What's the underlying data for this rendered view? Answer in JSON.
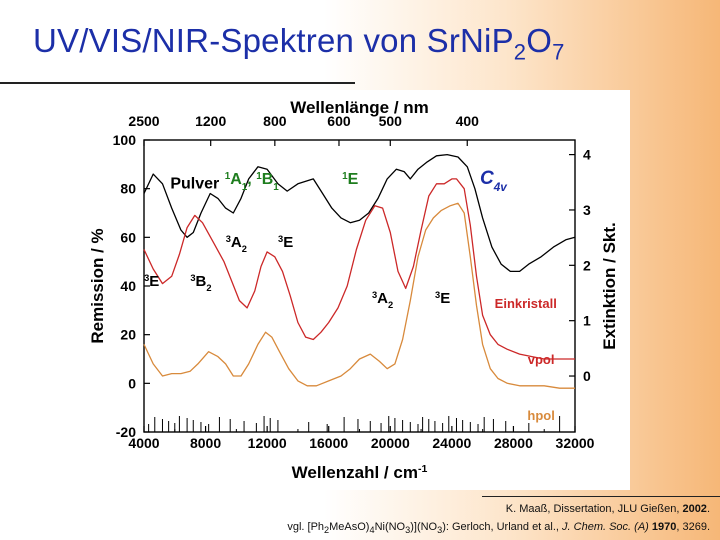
{
  "slide": {
    "title_main": "UV/VIS/NIR-Spektren von SrNiP",
    "title_sub1": "2",
    "title_o": "O",
    "title_sub2": "7"
  },
  "references": {
    "line1_text": "K. Maaß, Dissertation, JLU Gießen, ",
    "line1_year": "2002",
    "line1_end": ".",
    "line2_a": "vgl. [Ph",
    "line2_b": "MeAsO)",
    "line2_c": "Ni(NO",
    "line2_d": ")](NO",
    "line2_e": "): Gerloch, Urland et al., ",
    "line2_journal": "J. Chem. Soc. (A)",
    "line2_year": " 1970",
    "line2_pages": ", 3269.",
    "sub2": "2",
    "sub4": "4",
    "sub3": "3",
    "lbracket": "["
  },
  "chart_data": {
    "type": "line",
    "xlabel": "Wellenzahl / cm",
    "xlabel_sup": "-1",
    "top_xlabel": "Wellenlänge / nm",
    "ylabel_left": "Remission / %",
    "ylabel_right": "Extinktion / Skt.",
    "xlim": [
      4000,
      32000
    ],
    "ylim_left": [
      -20,
      100
    ],
    "xticks": [
      "4000",
      "8000",
      "12000",
      "16000",
      "20000",
      "24000",
      "28000",
      "32000"
    ],
    "xtick_values": [
      4000,
      8000,
      12000,
      16000,
      20000,
      24000,
      28000,
      32000
    ],
    "yticks_left": [
      "-20",
      "0",
      "20",
      "40",
      "60",
      "80",
      "100"
    ],
    "ytick_left_values": [
      -20,
      0,
      20,
      40,
      60,
      80,
      100
    ],
    "yticks_right": [
      "0",
      "1",
      "2",
      "3",
      "4"
    ],
    "ytick_right_values": [
      0,
      1,
      2,
      3,
      4
    ],
    "right_axis_map": {
      "0": 3,
      "4": 94
    },
    "top_ticks": [
      {
        "label": "2500",
        "wavenumber": 4000
      },
      {
        "label": "1200",
        "wavenumber": 8333
      },
      {
        "label": "800",
        "wavenumber": 12500
      },
      {
        "label": "600",
        "wavenumber": 16667
      },
      {
        "label": "500",
        "wavenumber": 20000
      },
      {
        "label": "400",
        "wavenumber": 25000
      }
    ],
    "series": [
      {
        "name": "Pulver",
        "color": "#000000",
        "axis": "left",
        "points": [
          [
            4000,
            78
          ],
          [
            4600,
            86
          ],
          [
            5200,
            82
          ],
          [
            5800,
            72
          ],
          [
            6400,
            63
          ],
          [
            6800,
            60
          ],
          [
            7200,
            62
          ],
          [
            7700,
            70
          ],
          [
            8300,
            78
          ],
          [
            8800,
            76
          ],
          [
            9300,
            72
          ],
          [
            9800,
            70
          ],
          [
            10300,
            76
          ],
          [
            10800,
            84
          ],
          [
            11400,
            89
          ],
          [
            12000,
            88
          ],
          [
            12700,
            82
          ],
          [
            13300,
            79
          ],
          [
            14000,
            82
          ],
          [
            15000,
            84
          ],
          [
            15600,
            78
          ],
          [
            16200,
            72
          ],
          [
            16800,
            68
          ],
          [
            17400,
            66
          ],
          [
            18000,
            67
          ],
          [
            18600,
            70
          ],
          [
            19200,
            76
          ],
          [
            19800,
            84
          ],
          [
            20400,
            88
          ],
          [
            20900,
            87
          ],
          [
            21300,
            84
          ],
          [
            21800,
            88
          ],
          [
            22400,
            91
          ],
          [
            23000,
            93.5
          ],
          [
            23700,
            94
          ],
          [
            24400,
            93
          ],
          [
            25000,
            89
          ],
          [
            25500,
            80
          ],
          [
            26000,
            68
          ],
          [
            26600,
            56
          ],
          [
            27200,
            49
          ],
          [
            27800,
            46
          ],
          [
            28400,
            46
          ],
          [
            29000,
            49
          ],
          [
            29800,
            52
          ],
          [
            30600,
            56
          ],
          [
            31400,
            59
          ],
          [
            32000,
            60
          ]
        ]
      },
      {
        "name": "vpol",
        "color": "#cc2828",
        "axis": "left",
        "points": [
          [
            4000,
            55
          ],
          [
            4600,
            47
          ],
          [
            5200,
            41
          ],
          [
            5800,
            44
          ],
          [
            6300,
            53
          ],
          [
            6800,
            64
          ],
          [
            7300,
            69
          ],
          [
            7800,
            66
          ],
          [
            8500,
            58
          ],
          [
            9200,
            50
          ],
          [
            9700,
            42
          ],
          [
            10200,
            34
          ],
          [
            10700,
            31
          ],
          [
            11200,
            38
          ],
          [
            11600,
            48
          ],
          [
            12000,
            54
          ],
          [
            12500,
            52
          ],
          [
            13000,
            46
          ],
          [
            13500,
            36
          ],
          [
            14000,
            25
          ],
          [
            14500,
            19
          ],
          [
            15000,
            18
          ],
          [
            15500,
            21
          ],
          [
            16000,
            25
          ],
          [
            16600,
            31
          ],
          [
            17200,
            40
          ],
          [
            17800,
            55
          ],
          [
            18400,
            67
          ],
          [
            19000,
            73
          ],
          [
            19500,
            72
          ],
          [
            20000,
            62
          ],
          [
            20500,
            46
          ],
          [
            21000,
            39
          ],
          [
            21500,
            48
          ],
          [
            22000,
            63
          ],
          [
            22500,
            77
          ],
          [
            23000,
            82
          ],
          [
            23500,
            82
          ],
          [
            24000,
            84
          ],
          [
            24300,
            84
          ],
          [
            24800,
            80
          ],
          [
            25200,
            65
          ],
          [
            25600,
            44
          ],
          [
            26000,
            28
          ],
          [
            26500,
            20
          ],
          [
            27000,
            16
          ],
          [
            27600,
            14
          ],
          [
            28400,
            12
          ],
          [
            29200,
            11
          ],
          [
            30000,
            10
          ],
          [
            31000,
            10
          ],
          [
            32000,
            10
          ]
        ]
      },
      {
        "name": "hpol",
        "color": "#d88a3c",
        "axis": "left",
        "points": [
          [
            4000,
            16
          ],
          [
            4600,
            8
          ],
          [
            5200,
            3
          ],
          [
            5800,
            4
          ],
          [
            6400,
            4
          ],
          [
            7000,
            5
          ],
          [
            7500,
            8
          ],
          [
            8200,
            13
          ],
          [
            8800,
            11
          ],
          [
            9300,
            8
          ],
          [
            9800,
            3
          ],
          [
            10300,
            3
          ],
          [
            10800,
            8
          ],
          [
            11400,
            16
          ],
          [
            11900,
            21
          ],
          [
            12300,
            19
          ],
          [
            12800,
            13
          ],
          [
            13400,
            6
          ],
          [
            14000,
            1
          ],
          [
            14600,
            -1
          ],
          [
            15200,
            -1
          ],
          [
            16000,
            1
          ],
          [
            16800,
            3
          ],
          [
            17400,
            6
          ],
          [
            18000,
            10
          ],
          [
            18700,
            12
          ],
          [
            19300,
            9
          ],
          [
            19800,
            6
          ],
          [
            20300,
            8
          ],
          [
            20800,
            18
          ],
          [
            21300,
            34
          ],
          [
            21800,
            52
          ],
          [
            22300,
            63
          ],
          [
            22800,
            68
          ],
          [
            23300,
            71
          ],
          [
            23900,
            73
          ],
          [
            24400,
            74
          ],
          [
            24800,
            70
          ],
          [
            25200,
            52
          ],
          [
            25600,
            32
          ],
          [
            26000,
            16
          ],
          [
            26500,
            6
          ],
          [
            27000,
            2
          ],
          [
            27600,
            0
          ],
          [
            28400,
            -1
          ],
          [
            29200,
            -1
          ],
          [
            30000,
            -1
          ],
          [
            31000,
            -2
          ],
          [
            32000,
            -2
          ]
        ]
      }
    ],
    "baseline_marks": [
      4300,
      4700,
      5200,
      5600,
      6000,
      6300,
      6800,
      7200,
      7700,
      8200,
      8900,
      9600,
      10500,
      11300,
      11800,
      12200,
      12700,
      14700,
      15900,
      17000,
      17900,
      18700,
      19400,
      19900,
      20300,
      20800,
      21300,
      21800,
      22100,
      22500,
      22900,
      23400,
      23800,
      24300,
      24700,
      25200,
      25700,
      26100,
      26700,
      27500,
      29000,
      31000
    ],
    "annotations": [
      {
        "text": "Pulver",
        "x": 7300,
        "y": 80,
        "color": "#000000",
        "size": 16
      },
      {
        "text": "Einkristall",
        "x": 28800,
        "y": 31,
        "color": "#cc2828",
        "size": 13
      },
      {
        "text": "vpol",
        "x": 29800,
        "y": 8,
        "color": "#cc2828",
        "size": 13
      },
      {
        "text": "hpol",
        "x": 29800,
        "y": -15,
        "color": "#d88a3c",
        "size": 13
      }
    ],
    "term_labels": [
      {
        "id": "3A2-left",
        "sup": "3",
        "main": "A",
        "sub": "2",
        "x": 10000,
        "y": 56
      },
      {
        "id": "3E-mid",
        "sup": "3",
        "main": "E",
        "x": 13200,
        "y": 56
      },
      {
        "id": "3E-left",
        "sup": "3",
        "main": "E",
        "x": 4500,
        "y": 40
      },
      {
        "id": "3B2",
        "sup": "3",
        "main": "B",
        "sub": "2",
        "x": 7700,
        "y": 40
      },
      {
        "id": "3A2-right",
        "sup": "3",
        "main": "A",
        "sub": "2",
        "x": 19500,
        "y": 33
      },
      {
        "id": "3E-right",
        "sup": "3",
        "main": "E",
        "x": 23400,
        "y": 33
      }
    ],
    "green_labels": [
      {
        "id": "1A1-1B1",
        "parts": [
          [
            "1",
            "sup"
          ],
          [
            "A",
            "m"
          ],
          [
            "1",
            "sub"
          ],
          [
            ", ",
            "m"
          ],
          [
            "1",
            "sup"
          ],
          [
            "B",
            "m"
          ],
          [
            "1",
            "sub"
          ]
        ],
        "x": 11000,
        "y": 82
      },
      {
        "id": "1E",
        "parts": [
          [
            "1",
            "sup"
          ],
          [
            "E",
            "m"
          ]
        ],
        "x": 17400,
        "y": 82
      }
    ],
    "symmetry_label": {
      "main": "C",
      "sub": "4v",
      "x": 26700,
      "y": 82
    }
  }
}
